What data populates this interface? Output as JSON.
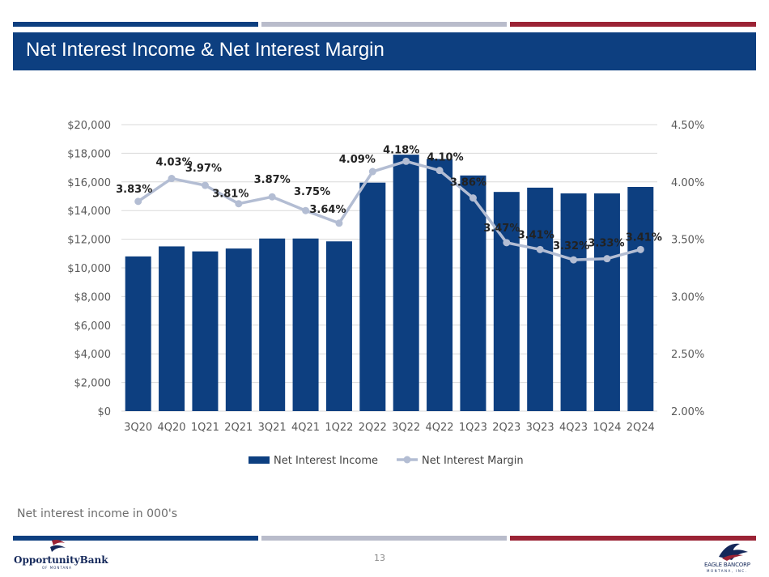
{
  "slide": {
    "title": "Net Interest Income & Net Interest Margin",
    "footnote": "Net interest income in 000's",
    "page_number": "13",
    "left_logo_name": "OpportunityBank",
    "left_logo_sub": "OF MONTANA",
    "right_logo_name": "EAGLE BANCORP",
    "right_logo_sub": "MONTANA, INC."
  },
  "colors": {
    "navy": "#0d3f80",
    "bar": "#0d3f80",
    "gray_stripe": "#b9bccb",
    "red_stripe": "#9b2335",
    "line": "#b3bdd3",
    "grid": "#d9d9d9",
    "axis_text": "#595959",
    "label_text": "#222222"
  },
  "chart_data": {
    "type": "bar+line",
    "categories": [
      "3Q20",
      "4Q20",
      "1Q21",
      "2Q21",
      "3Q21",
      "4Q21",
      "1Q22",
      "2Q22",
      "3Q22",
      "4Q22",
      "1Q23",
      "2Q23",
      "3Q23",
      "4Q23",
      "1Q24",
      "2Q24"
    ],
    "series": [
      {
        "name": "Net Interest Income",
        "type": "bar",
        "axis": "left",
        "values": [
          10800,
          11500,
          11150,
          11350,
          12050,
          12050,
          11850,
          15950,
          17900,
          17600,
          16450,
          15300,
          15600,
          15200,
          15200,
          15650
        ]
      },
      {
        "name": "Net Interest Margin",
        "type": "line",
        "axis": "right",
        "values": [
          3.83,
          4.03,
          3.97,
          3.81,
          3.87,
          3.75,
          3.64,
          4.09,
          4.18,
          4.1,
          3.86,
          3.47,
          3.41,
          3.32,
          3.33,
          3.41
        ],
        "labels": [
          "3.83%",
          "4.03%",
          "3.97%",
          "3.81%",
          "3.87%",
          "3.75%",
          "3.64%",
          "4.09%",
          "4.18%",
          "4.10%",
          "3.86%",
          "3.47%",
          "3.41%",
          "3.32%",
          "3.33%",
          "3.41%"
        ]
      }
    ],
    "left_axis": {
      "min": 0,
      "max": 20000,
      "ticks": [
        0,
        2000,
        4000,
        6000,
        8000,
        10000,
        12000,
        14000,
        16000,
        18000,
        20000
      ],
      "tick_labels": [
        "$0",
        "$2,000",
        "$4,000",
        "$6,000",
        "$8,000",
        "$10,000",
        "$12,000",
        "$14,000",
        "$16,000",
        "$18,000",
        "$20,000"
      ]
    },
    "right_axis": {
      "min": 2.0,
      "max": 4.5,
      "ticks": [
        2.0,
        2.5,
        3.0,
        3.5,
        4.0,
        4.5
      ],
      "tick_labels": [
        "2.00%",
        "2.50%",
        "3.00%",
        "3.50%",
        "4.00%",
        "4.50%"
      ]
    },
    "grid": true,
    "legend": {
      "position": "bottom",
      "entries": [
        "Net Interest Income",
        "Net Interest Margin"
      ]
    }
  }
}
